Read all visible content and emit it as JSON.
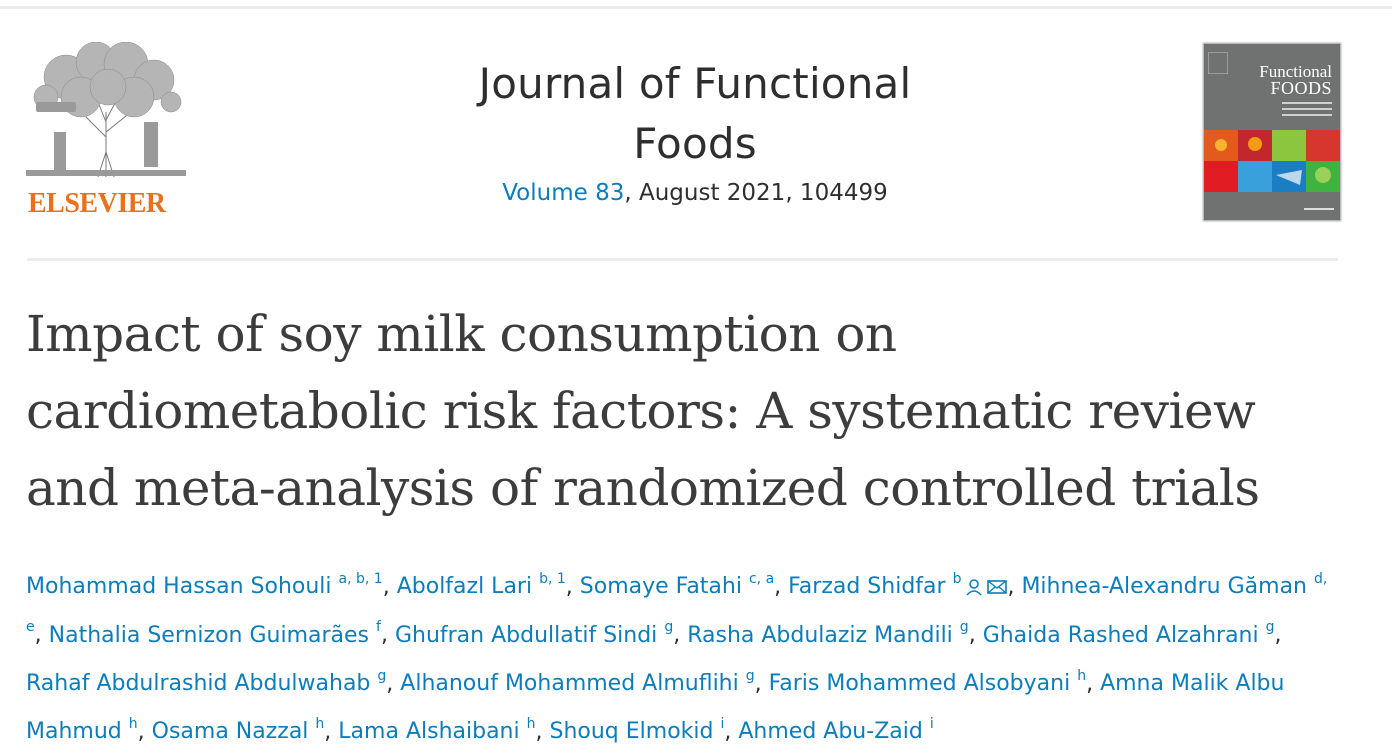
{
  "publisher": {
    "name": "ELSEVIER",
    "accent": "#e9711c"
  },
  "journal": {
    "title_line1": "Journal of Functional",
    "title_line2": "Foods",
    "volume_label": "Volume 83",
    "issue_rest": ", August 2021, 104499"
  },
  "cover": {
    "title_line1": "Functional",
    "title_line2": "FOODS"
  },
  "article": {
    "title_line1": "Impact of soy milk consumption on",
    "title_line2": "cardiometabolic risk factors: A systematic review",
    "title_line3": "and meta-analysis of randomized controlled trials"
  },
  "authors": [
    {
      "name": "Mohammad Hassan Sohouli",
      "aff": "a, b, 1"
    },
    {
      "name": "Abolfazl Lari",
      "aff": "b, 1"
    },
    {
      "name": "Somaye Fatahi",
      "aff": "c, a"
    },
    {
      "name": "Farzad Shidfar",
      "aff": "b",
      "icons": [
        "person-icon",
        "envelope-icon"
      ]
    },
    {
      "name": "Mihnea-Alexandru Găman",
      "aff": "d, e"
    },
    {
      "name": "Nathalia Sernizon Guimarães",
      "aff": "f"
    },
    {
      "name": "Ghufran Abdullatif Sindi",
      "aff": "g"
    },
    {
      "name": "Rasha Abdulaziz Mandili",
      "aff": "g"
    },
    {
      "name": "Ghaida Rashed Alzahrani",
      "aff": "g"
    },
    {
      "name": "Rahaf Abdulrashid Abdulwahab",
      "aff": "g"
    },
    {
      "name": "Alhanouf Mohammed Almuflihi",
      "aff": "g"
    },
    {
      "name": "Faris Mohammed Alsobyani",
      "aff": "h"
    },
    {
      "name": "Amna Malik Albu Mahmud",
      "aff": "h"
    },
    {
      "name": "Osama Nazzal",
      "aff": "h"
    },
    {
      "name": "Lama Alshaibani",
      "aff": "h"
    },
    {
      "name": "Shouq Elmokid",
      "aff": "i"
    },
    {
      "name": "Ahmed Abu-Zaid",
      "aff": "i"
    }
  ],
  "colors": {
    "link": "#0c7dbb",
    "text": "#2e2e2e"
  }
}
